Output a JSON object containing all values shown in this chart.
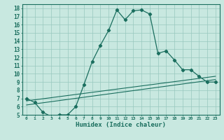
{
  "title": "",
  "xlabel": "Humidex (Indice chaleur)",
  "bg_color": "#c8e8e0",
  "grid_color": "#98c8be",
  "line_color": "#1a6e5e",
  "xlim": [
    -0.5,
    23.5
  ],
  "ylim": [
    5,
    18.5
  ],
  "xticks": [
    0,
    1,
    2,
    3,
    4,
    5,
    6,
    7,
    8,
    9,
    10,
    11,
    12,
    13,
    14,
    15,
    16,
    17,
    18,
    19,
    20,
    21,
    22,
    23
  ],
  "yticks": [
    5,
    6,
    7,
    8,
    9,
    10,
    11,
    12,
    13,
    14,
    15,
    16,
    17,
    18
  ],
  "line1_x": [
    0,
    1,
    2,
    3,
    4,
    5,
    6,
    7,
    8,
    9,
    10,
    11,
    12,
    13,
    14,
    15,
    16,
    17,
    18,
    19,
    20,
    21,
    22,
    23
  ],
  "line1_y": [
    7.0,
    6.5,
    5.3,
    4.8,
    5.0,
    5.0,
    6.0,
    8.7,
    11.5,
    13.5,
    15.3,
    17.8,
    16.6,
    17.7,
    17.8,
    17.3,
    12.5,
    12.8,
    11.7,
    10.5,
    10.5,
    9.7,
    9.0,
    9.0
  ],
  "line2_x": [
    0,
    23
  ],
  "line2_y": [
    6.2,
    9.3
  ],
  "line3_x": [
    0,
    23
  ],
  "line3_y": [
    6.7,
    9.7
  ]
}
